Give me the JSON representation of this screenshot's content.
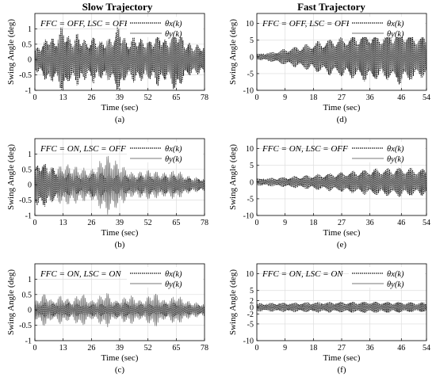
{
  "column_titles": [
    "Slow Trajectory",
    "Fast Trajectory"
  ],
  "chart_data": [
    {
      "type": "line",
      "panel_label": "(a)",
      "annotation": "FFC = OFF, LSC = OFF",
      "xlabel": "Time (sec)",
      "ylabel": "Swing Angle (deg)",
      "xlim": [
        0,
        78
      ],
      "ylim": [
        -1,
        1.5
      ],
      "xticks": [
        0,
        13,
        26,
        39,
        52,
        65,
        78
      ],
      "yticks": [
        -1,
        -0.5,
        0,
        0.5,
        1
      ],
      "grid": true,
      "legend_position": "top-right",
      "series": [
        {
          "name": "θx(k)",
          "style": "dotted",
          "color": "#000000",
          "envelope": [
            [
              0,
              0.35
            ],
            [
              4,
              0.6
            ],
            [
              7,
              0.9
            ],
            [
              9,
              0.6
            ],
            [
              13,
              1.2
            ],
            [
              16,
              0.7
            ],
            [
              20,
              0.9
            ],
            [
              24,
              0.6
            ],
            [
              27,
              0.8
            ],
            [
              30,
              0.6
            ],
            [
              35,
              0.7
            ],
            [
              39,
              1.2
            ],
            [
              42,
              0.6
            ],
            [
              46,
              0.8
            ],
            [
              52,
              0.6
            ],
            [
              57,
              0.9
            ],
            [
              61,
              0.6
            ],
            [
              65,
              1.2
            ],
            [
              69,
              0.6
            ],
            [
              73,
              0.5
            ],
            [
              78,
              0.5
            ]
          ]
        },
        {
          "name": "θy(k)",
          "style": "solid",
          "color": "#777777",
          "envelope": [
            [
              0,
              0.3
            ],
            [
              4,
              0.5
            ],
            [
              7,
              0.6
            ],
            [
              13,
              0.9
            ],
            [
              16,
              0.5
            ],
            [
              20,
              0.6
            ],
            [
              26,
              0.5
            ],
            [
              30,
              0.6
            ],
            [
              39,
              0.8
            ],
            [
              44,
              0.5
            ],
            [
              52,
              0.6
            ],
            [
              57,
              0.6
            ],
            [
              65,
              0.8
            ],
            [
              71,
              0.4
            ],
            [
              78,
              0.4
            ]
          ]
        }
      ]
    },
    {
      "type": "line",
      "panel_label": "(d)",
      "annotation": "FFC = OFF, LSC = OFF",
      "xlabel": "Time (sec)",
      "ylabel": "Swing Angle (deg)",
      "xlim": [
        0,
        54
      ],
      "ylim": [
        -10,
        13
      ],
      "xticks": [
        0,
        9,
        18,
        27,
        36,
        46,
        54
      ],
      "yticks": [
        -10,
        -5,
        0,
        5,
        10
      ],
      "grid": true,
      "legend_position": "top-right",
      "series": [
        {
          "name": "θx(k)",
          "style": "dotted",
          "color": "#000000",
          "envelope": [
            [
              0,
              0.8
            ],
            [
              5,
              1.5
            ],
            [
              9,
              2.5
            ],
            [
              14,
              3.5
            ],
            [
              18,
              4.5
            ],
            [
              23,
              5.5
            ],
            [
              27,
              6
            ],
            [
              32,
              7
            ],
            [
              36,
              7.5
            ],
            [
              40,
              6.5
            ],
            [
              43,
              7.5
            ],
            [
              46,
              8.5
            ],
            [
              50,
              7
            ],
            [
              54,
              6
            ]
          ]
        },
        {
          "name": "θy(k)",
          "style": "solid",
          "color": "#777777",
          "envelope": [
            [
              0,
              0.6
            ],
            [
              9,
              2
            ],
            [
              18,
              3.5
            ],
            [
              27,
              5
            ],
            [
              36,
              6
            ],
            [
              46,
              6.5
            ],
            [
              54,
              5
            ]
          ]
        }
      ]
    },
    {
      "type": "line",
      "panel_label": "(b)",
      "annotation": "FFC = ON, LSC = OFF",
      "xlabel": "Time (sec)",
      "ylabel": "Swing Angle (deg)",
      "xlim": [
        0,
        78
      ],
      "ylim": [
        -1,
        1.5
      ],
      "xticks": [
        0,
        13,
        26,
        39,
        52,
        65,
        78
      ],
      "yticks": [
        -1,
        -0.5,
        0,
        0.5,
        1
      ],
      "grid": true,
      "legend_position": "top-right",
      "series": [
        {
          "name": "θx(k)",
          "style": "dotted",
          "color": "#000000",
          "envelope": [
            [
              0,
              0.6
            ],
            [
              3,
              0.8
            ],
            [
              7,
              0.6
            ],
            [
              10,
              0.5
            ],
            [
              14,
              0.4
            ],
            [
              20,
              0.3
            ],
            [
              26,
              0.4
            ],
            [
              33,
              0.4
            ],
            [
              39,
              0.3
            ],
            [
              46,
              0.3
            ],
            [
              52,
              0.3
            ],
            [
              60,
              0.3
            ],
            [
              67,
              0.3
            ],
            [
              72,
              0.2
            ],
            [
              78,
              0.2
            ]
          ]
        },
        {
          "name": "θy(k)",
          "style": "solid",
          "color": "#777777",
          "envelope": [
            [
              0,
              0.5
            ],
            [
              3,
              0.7
            ],
            [
              7,
              0.6
            ],
            [
              10,
              0.6
            ],
            [
              14,
              0.7
            ],
            [
              20,
              0.6
            ],
            [
              26,
              0.5
            ],
            [
              33,
              1.0
            ],
            [
              39,
              0.7
            ],
            [
              45,
              0.4
            ],
            [
              52,
              0.5
            ],
            [
              60,
              0.4
            ],
            [
              65,
              0.5
            ],
            [
              70,
              0.3
            ],
            [
              78,
              0.2
            ]
          ]
        }
      ]
    },
    {
      "type": "line",
      "panel_label": "(e)",
      "annotation": "FFC = ON, LSC = OFF",
      "xlabel": "Time (sec)",
      "ylabel": "Swing Angle (deg)",
      "xlim": [
        0,
        54
      ],
      "ylim": [
        -10,
        13
      ],
      "xticks": [
        0,
        9,
        18,
        27,
        36,
        46,
        54
      ],
      "yticks": [
        -10,
        -5,
        0,
        5,
        10
      ],
      "grid": true,
      "legend_position": "top-right",
      "series": [
        {
          "name": "θx(k)",
          "style": "dotted",
          "color": "#000000",
          "envelope": [
            [
              0,
              1
            ],
            [
              9,
              1.5
            ],
            [
              18,
              2.3
            ],
            [
              27,
              3
            ],
            [
              36,
              4
            ],
            [
              46,
              4.5
            ],
            [
              54,
              4
            ]
          ]
        },
        {
          "name": "θy(k)",
          "style": "solid",
          "color": "#777777",
          "envelope": [
            [
              0,
              0.8
            ],
            [
              9,
              1.2
            ],
            [
              18,
              1.8
            ],
            [
              27,
              2.5
            ],
            [
              36,
              3.2
            ],
            [
              46,
              3.5
            ],
            [
              54,
              3
            ]
          ]
        }
      ]
    },
    {
      "type": "line",
      "panel_label": "(c)",
      "annotation": "FFC = ON, LSC = ON",
      "xlabel": "Time (sec)",
      "ylabel": "Swing Angle (deg)",
      "xlim": [
        0,
        78
      ],
      "ylim": [
        -1,
        1.5
      ],
      "xticks": [
        0,
        13,
        26,
        39,
        52,
        65,
        78
      ],
      "yticks": [
        -1,
        -0.5,
        0,
        0.5,
        1
      ],
      "grid": true,
      "legend_position": "top-right",
      "series": [
        {
          "name": "θx(k)",
          "style": "dotted",
          "color": "#000000",
          "envelope": [
            [
              0,
              0.2
            ],
            [
              5,
              0.25
            ],
            [
              10,
              0.2
            ],
            [
              14,
              0.25
            ],
            [
              20,
              0.2
            ],
            [
              26,
              0.2
            ],
            [
              33,
              0.2
            ],
            [
              39,
              0.25
            ],
            [
              46,
              0.2
            ],
            [
              52,
              0.2
            ],
            [
              58,
              0.2
            ],
            [
              65,
              0.25
            ],
            [
              72,
              0.15
            ],
            [
              78,
              0.15
            ]
          ]
        },
        {
          "name": "θy(k)",
          "style": "solid",
          "color": "#777777",
          "envelope": [
            [
              0,
              0.3
            ],
            [
              5,
              0.6
            ],
            [
              8,
              0.3
            ],
            [
              12,
              0.5
            ],
            [
              17,
              0.3
            ],
            [
              21,
              0.6
            ],
            [
              26,
              0.3
            ],
            [
              33,
              0.6
            ],
            [
              37,
              0.3
            ],
            [
              44,
              0.5
            ],
            [
              49,
              0.3
            ],
            [
              55,
              0.6
            ],
            [
              60,
              0.3
            ],
            [
              65,
              0.5
            ],
            [
              70,
              0.3
            ],
            [
              78,
              0.2
            ]
          ]
        }
      ]
    },
    {
      "type": "line",
      "panel_label": "(f)",
      "annotation": "FFC = ON, LSC = ON",
      "xlabel": "Time (sec)",
      "ylabel": "Swing Angle (deg)",
      "xlim": [
        0,
        54
      ],
      "ylim": [
        -10,
        13
      ],
      "xticks": [
        0,
        9,
        18,
        27,
        36,
        46,
        54
      ],
      "yticks": [
        -10,
        -5,
        -2,
        0,
        2,
        5,
        10
      ],
      "grid": true,
      "legend_position": "top-right",
      "series": [
        {
          "name": "θx(k)",
          "style": "dotted",
          "color": "#000000",
          "envelope": [
            [
              0,
              1.2
            ],
            [
              9,
              1.4
            ],
            [
              18,
              1.5
            ],
            [
              27,
              1.6
            ],
            [
              36,
              1.7
            ],
            [
              46,
              1.6
            ],
            [
              54,
              1.4
            ]
          ]
        },
        {
          "name": "θy(k)",
          "style": "solid",
          "color": "#777777",
          "envelope": [
            [
              0,
              1
            ],
            [
              9,
              1.2
            ],
            [
              18,
              1.3
            ],
            [
              27,
              1.4
            ],
            [
              36,
              1.5
            ],
            [
              46,
              1.4
            ],
            [
              54,
              1.2
            ]
          ]
        }
      ]
    }
  ]
}
